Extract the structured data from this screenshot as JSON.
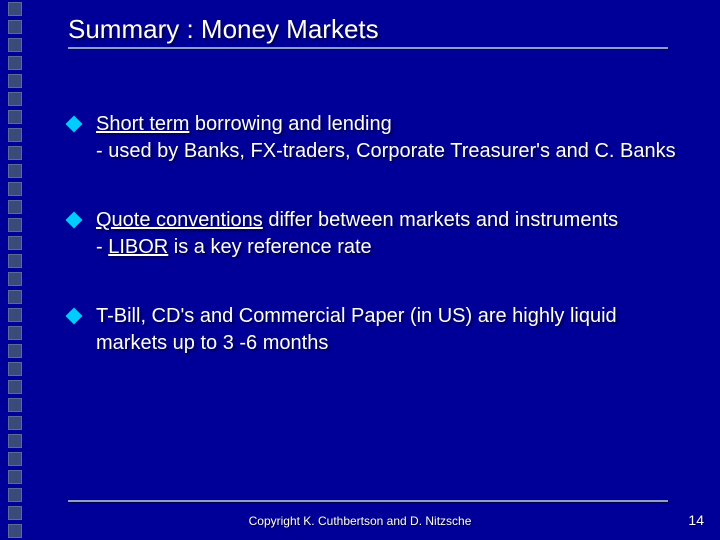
{
  "title": "Summary : Money Markets",
  "bullets": [
    {
      "u1": "Short term",
      "t1": " borrowing and lending",
      "t2": " - used by Banks, FX-traders, Corporate Treasurer's and C. Banks"
    },
    {
      "u1": "Quote conventions",
      "t1": " differ between markets and instruments",
      "t2a": " -  ",
      "u2": "LIBOR",
      "t2b": "  is a key reference rate"
    },
    {
      "t1": "T-Bill, CD's and Commercial Paper (in US) are highly liquid markets up to  3 -6  months"
    }
  ],
  "copyright": "Copyright K. Cuthbertson and D. Nitzsche",
  "page": "14",
  "colors": {
    "background": "#000099",
    "text": "#ffffff",
    "bullet_diamond": "#00ccff",
    "divider": "#88a0cc",
    "sidebar_square": "#3a4a7a"
  },
  "fontsize": {
    "title": 26,
    "body": 20,
    "copyright": 12,
    "page": 14
  }
}
